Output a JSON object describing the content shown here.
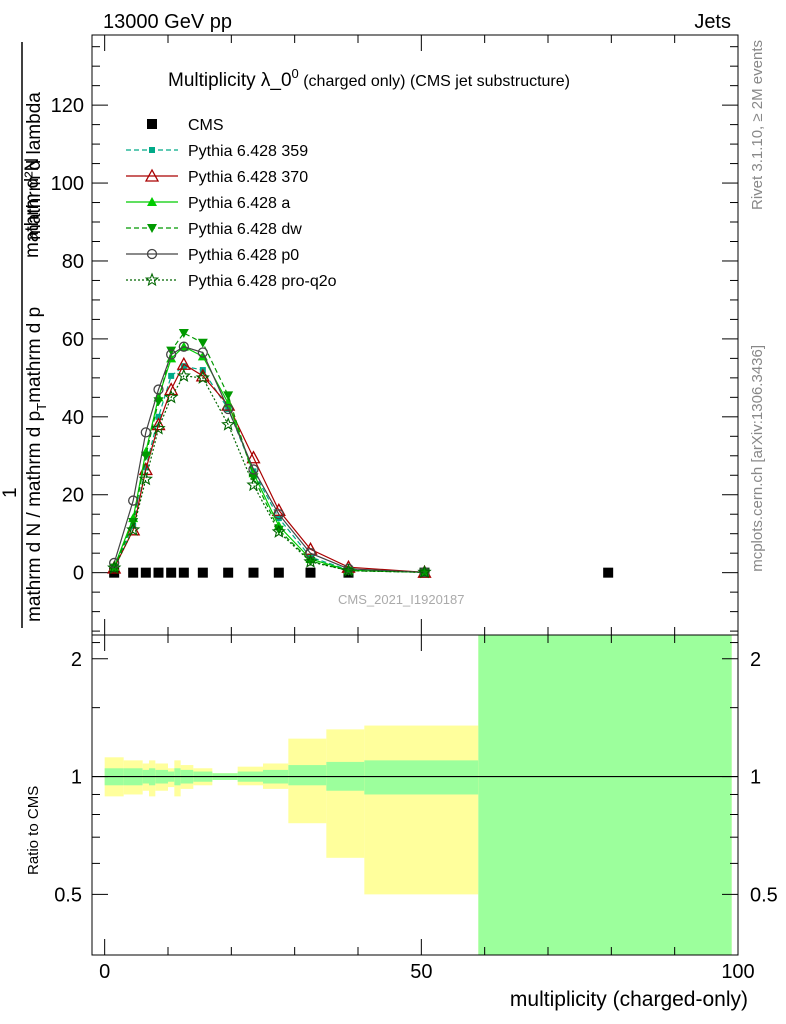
{
  "header": {
    "left": "13000 GeV pp",
    "right": "Jets"
  },
  "side_labels": {
    "rivet": "Rivet 3.1.10, ≥ 2M events",
    "mcplots": "mcplots.cern.ch [arXiv:1306.3436]"
  },
  "watermark": "CMS_2021_I1920187",
  "chart_data": [
    {
      "type": "line",
      "title": "Multiplicity λ_0⁰ (charged only) (CMS jet substructure)",
      "title_main": "Multiplicity λ_0",
      "title_sup": "0",
      "title_rest": " (charged only) (CMS jet substructure)",
      "ylabel": "1 / mathrm d N / mathrm d p_T mathrm d^2N / mathrm d p_T mathrm d lambda",
      "ylabel_num": "mathrm d²N",
      "ylabel_den1": "mathrm d N / mathrm d p",
      "ylabel_den2": "mathrm d p",
      "ylabel_den3": "mathrm d lambda",
      "ylabel_sub": "T",
      "ylabel_one": "1",
      "xlim": [
        -2,
        100
      ],
      "ylim": [
        -16,
        138
      ],
      "yticks": [
        0,
        20,
        40,
        60,
        80,
        100,
        120
      ],
      "ytick_labels": [
        "0",
        "20",
        "40",
        "60",
        "80",
        "100",
        "120"
      ],
      "legend_position": "top-left",
      "series": [
        {
          "name": "CMS",
          "color": "#000000",
          "marker": "square",
          "line": "none",
          "x": [
            1.5,
            4.5,
            6.5,
            8.5,
            10.5,
            12.5,
            15.5,
            19.5,
            23.5,
            27.5,
            32.5,
            38.5,
            50.5,
            79.5
          ],
          "y": [
            0,
            0,
            0,
            0,
            0,
            0,
            0,
            0,
            0,
            0,
            0,
            0,
            0,
            0
          ]
        },
        {
          "name": "Pythia 6.428 359",
          "color": "#00aa88",
          "marker": "small-square",
          "line": "dashed",
          "x": [
            1.5,
            4.5,
            6.5,
            8.5,
            10.5,
            12.5,
            15.5,
            19.5,
            23.5,
            27.5,
            32.5,
            38.5,
            50.5
          ],
          "y": [
            1.5,
            12,
            27,
            40,
            50.5,
            53,
            52,
            42,
            26,
            14,
            4,
            0.7,
            0.1
          ]
        },
        {
          "name": "Pythia 6.428 370",
          "color": "#aa0000",
          "marker": "open-triangle",
          "line": "solid",
          "x": [
            1.5,
            4.5,
            6.5,
            8.5,
            10.5,
            12.5,
            15.5,
            19.5,
            23.5,
            27.5,
            32.5,
            38.5,
            50.5
          ],
          "y": [
            1.2,
            11,
            26.5,
            38,
            47,
            53.5,
            50.5,
            43,
            29.5,
            16,
            6,
            1.4,
            0.1
          ]
        },
        {
          "name": "Pythia 6.428 a",
          "color": "#00cc00",
          "marker": "triangle",
          "line": "solid",
          "x": [
            1.5,
            4.5,
            6.5,
            8.5,
            10.5,
            12.5,
            15.5,
            19.5,
            23.5,
            27.5,
            32.5,
            38.5,
            50.5
          ],
          "y": [
            1.5,
            14,
            31,
            45,
            55,
            58,
            55.5,
            43.5,
            25.5,
            12,
            3.5,
            0.6,
            0.1
          ]
        },
        {
          "name": "Pythia 6.428 dw",
          "color": "#009900",
          "marker": "down-triangle",
          "line": "dashed",
          "x": [
            1.5,
            4.5,
            6.5,
            8.5,
            10.5,
            12.5,
            15.5,
            19.5,
            23.5,
            27.5,
            32.5,
            38.5,
            50.5
          ],
          "y": [
            1.3,
            13,
            30,
            44,
            57,
            61.5,
            59,
            45.5,
            24.5,
            11,
            3,
            0.5,
            0.1
          ]
        },
        {
          "name": "Pythia 6.428 p0",
          "color": "#444444",
          "marker": "open-circle",
          "line": "solid",
          "x": [
            1.5,
            4.5,
            6.5,
            8.5,
            10.5,
            12.5,
            15.5,
            19.5,
            23.5,
            27.5,
            32.5,
            38.5,
            50.5
          ],
          "y": [
            2.5,
            18.5,
            36,
            47,
            56,
            58,
            56.5,
            42,
            26.5,
            15,
            5,
            1,
            0.1
          ]
        },
        {
          "name": "Pythia 6.428 pro-q2o",
          "color": "#006600",
          "marker": "star",
          "line": "dotted",
          "x": [
            1.5,
            4.5,
            6.5,
            8.5,
            10.5,
            12.5,
            15.5,
            19.5,
            23.5,
            27.5,
            32.5,
            38.5,
            50.5
          ],
          "y": [
            1.2,
            11,
            24,
            37,
            45,
            50.5,
            50,
            38,
            22.5,
            10.5,
            2.8,
            0.5,
            0.1
          ]
        }
      ]
    },
    {
      "type": "area",
      "ylabel": "Ratio to CMS",
      "xlabel": "multiplicity (charged-only)",
      "xlim": [
        -2,
        100
      ],
      "ylim": [
        0.35,
        2.3
      ],
      "xticks": [
        0,
        50,
        100
      ],
      "xtick_labels": [
        "0",
        "50",
        "100"
      ],
      "yticks": [
        0.5,
        1,
        2
      ],
      "ytick_labels": [
        "0.5",
        "1",
        "2"
      ],
      "reference_line": 1,
      "bands": {
        "edges": [
          0,
          3,
          6,
          7,
          8,
          10,
          11,
          12,
          14,
          17,
          21,
          25,
          29,
          35,
          41,
          59,
          99
        ],
        "stat_lo": [
          0.95,
          0.95,
          0.96,
          0.95,
          0.96,
          0.97,
          0.95,
          0.96,
          0.97,
          0.98,
          0.97,
          0.96,
          0.95,
          0.92,
          0.9,
          0.0
        ],
        "stat_hi": [
          1.05,
          1.05,
          1.04,
          1.05,
          1.04,
          1.03,
          1.05,
          1.04,
          1.03,
          1.02,
          1.03,
          1.04,
          1.07,
          1.09,
          1.1,
          2.3
        ],
        "syst_lo": [
          0.89,
          0.9,
          0.92,
          0.89,
          0.92,
          0.94,
          0.89,
          0.93,
          0.95,
          0.98,
          0.95,
          0.93,
          0.76,
          0.62,
          0.5,
          0.0
        ],
        "syst_hi": [
          1.12,
          1.1,
          1.08,
          1.1,
          1.08,
          1.05,
          1.1,
          1.07,
          1.05,
          1.02,
          1.06,
          1.08,
          1.25,
          1.32,
          1.35,
          2.3
        ],
        "stat_color": "#9cff9c",
        "syst_color": "#ffff9c"
      }
    }
  ]
}
